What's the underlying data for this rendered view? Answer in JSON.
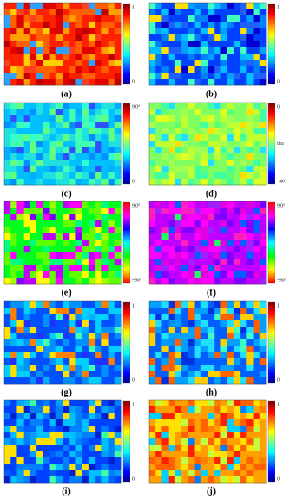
{
  "panels": [
    {
      "label": "(a)",
      "colorbar": {
        "top": "1",
        "bottom": "0"
      }
    },
    {
      "label": "(b)",
      "colorbar": {
        "top": "1",
        "bottom": "0"
      }
    },
    {
      "label": "(c)",
      "colorbar": {
        "top": "90°",
        "bottom": "0"
      }
    },
    {
      "label": "(d)",
      "colorbar": {
        "top": "0",
        "middle": "dB",
        "bottom": "-40"
      }
    },
    {
      "label": "(e)",
      "colorbar": {
        "top": "90°",
        "bottom": "-90°"
      }
    },
    {
      "label": "(f)",
      "colorbar": {
        "top": "90°",
        "bottom": "-90°"
      }
    },
    {
      "label": "(g)",
      "colorbar": {
        "top": "1",
        "bottom": "0"
      }
    },
    {
      "label": "(h)",
      "colorbar": {
        "top": "1",
        "bottom": "0"
      }
    },
    {
      "label": "(i)",
      "colorbar": {
        "top": "1",
        "bottom": "0"
      }
    },
    {
      "label": "(j)",
      "colorbar": {
        "top": "1",
        "bottom": "0"
      }
    }
  ]
}
